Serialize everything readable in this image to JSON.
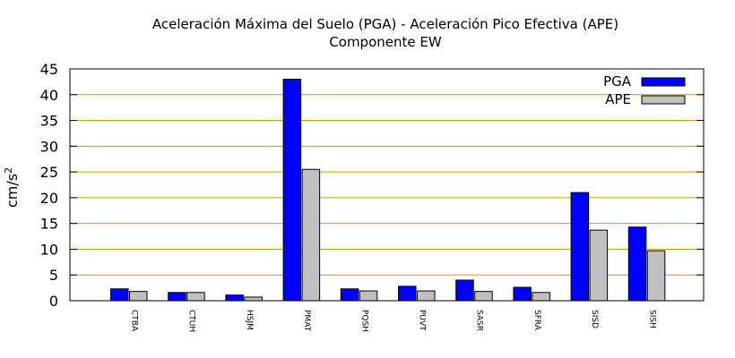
{
  "chart_data": {
    "type": "bar",
    "title": "Aceleración Máxima del Suelo (PGA) -  Aceleración Pico Efectiva (APE)",
    "subtitle": "Componente EW",
    "ylabel": "cm/s",
    "ylabel_sup": "2",
    "ylim": [
      0,
      45
    ],
    "yticks": [
      "0",
      "5",
      "10",
      "15",
      "20",
      "25",
      "30",
      "35",
      "40",
      "45"
    ],
    "grid": "horizontal",
    "legend_position": "top-right",
    "categories": [
      "CTBA",
      "CTUH",
      "HSJM",
      "PMAT",
      "PQSH",
      "PUVT",
      "SASR",
      "SFRA",
      "SISD",
      "SISH"
    ],
    "series": [
      {
        "name": "PGA",
        "color": "#0000ff",
        "values": [
          2.3,
          1.6,
          1.1,
          43.0,
          2.3,
          2.8,
          4.0,
          2.6,
          21.0,
          14.3
        ]
      },
      {
        "name": "APE",
        "color": "#c0c0c0",
        "values": [
          1.8,
          1.6,
          0.7,
          25.5,
          1.9,
          1.9,
          1.8,
          1.6,
          13.7,
          9.7
        ]
      }
    ],
    "grid_color": "#c8a000"
  }
}
